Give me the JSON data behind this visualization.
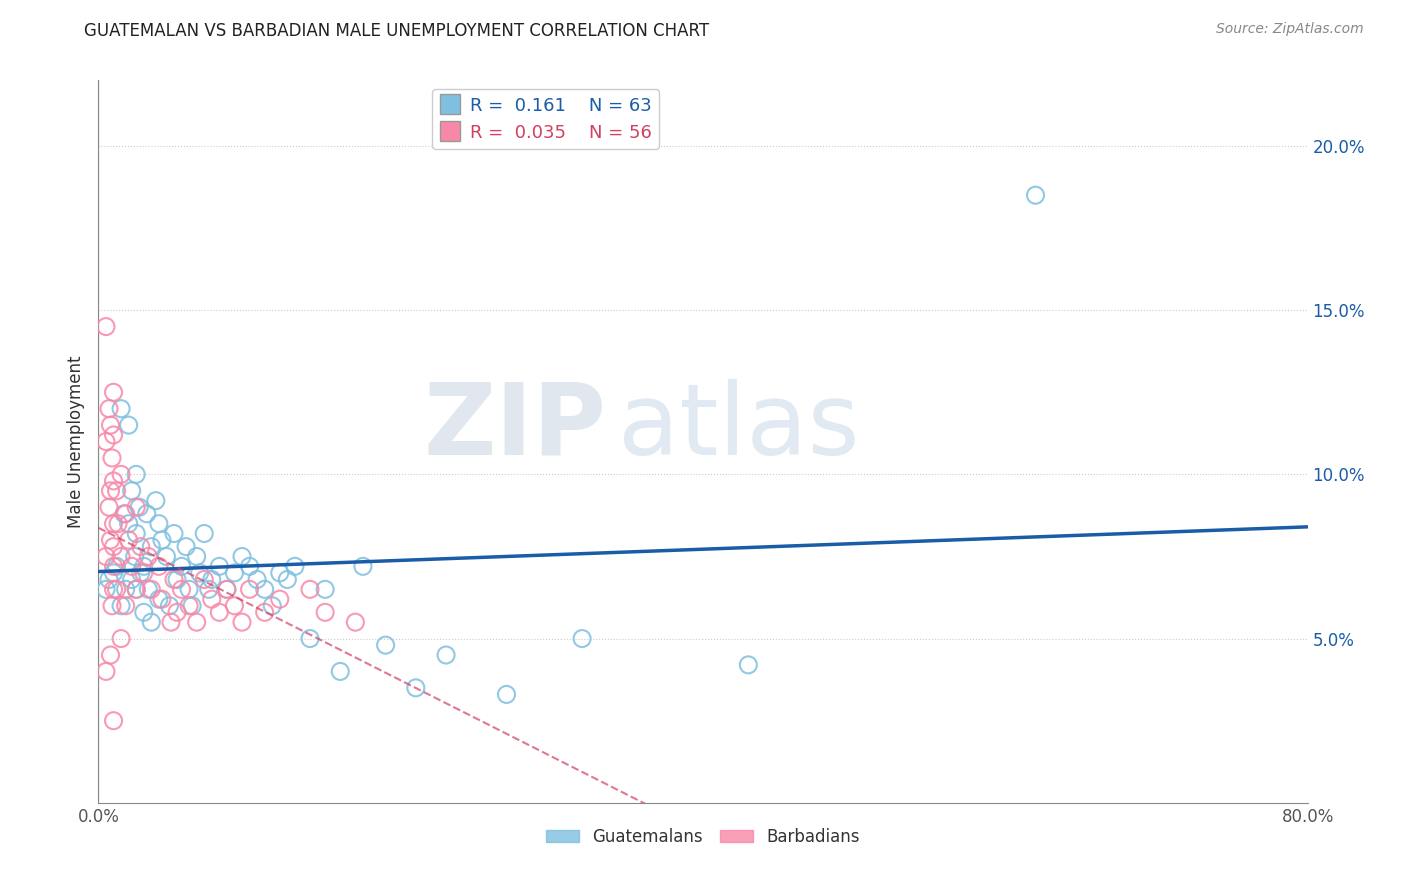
{
  "title": "GUATEMALAN VS BARBADIAN MALE UNEMPLOYMENT CORRELATION CHART",
  "source": "Source: ZipAtlas.com",
  "ylabel": "Male Unemployment",
  "xlim": [
    0.0,
    0.8
  ],
  "ylim": [
    0.0,
    0.22
  ],
  "y_ticks_right": [
    0.05,
    0.1,
    0.15,
    0.2
  ],
  "y_tick_labels_right": [
    "5.0%",
    "10.0%",
    "15.0%",
    "20.0%"
  ],
  "legend_blue_r": "0.161",
  "legend_blue_n": "63",
  "legend_pink_r": "0.035",
  "legend_pink_n": "56",
  "blue_color": "#7fbfdf",
  "pink_color": "#f888a8",
  "blue_line_color": "#1a5ca8",
  "pink_line_color": "#d04060",
  "watermark_zip": "ZIP",
  "watermark_atlas": "atlas",
  "guatemalans_x": [
    0.005,
    0.007,
    0.01,
    0.012,
    0.015,
    0.015,
    0.017,
    0.018,
    0.02,
    0.02,
    0.022,
    0.022,
    0.024,
    0.025,
    0.025,
    0.025,
    0.027,
    0.028,
    0.03,
    0.03,
    0.032,
    0.033,
    0.035,
    0.035,
    0.038,
    0.04,
    0.04,
    0.042,
    0.045,
    0.047,
    0.05,
    0.052,
    0.055,
    0.058,
    0.06,
    0.062,
    0.065,
    0.067,
    0.07,
    0.073,
    0.075,
    0.08,
    0.085,
    0.09,
    0.095,
    0.1,
    0.105,
    0.11,
    0.115,
    0.12,
    0.125,
    0.13,
    0.14,
    0.15,
    0.16,
    0.175,
    0.19,
    0.21,
    0.23,
    0.27,
    0.32,
    0.43,
    0.62
  ],
  "guatemalans_y": [
    0.065,
    0.068,
    0.07,
    0.072,
    0.06,
    0.12,
    0.088,
    0.065,
    0.115,
    0.085,
    0.095,
    0.068,
    0.075,
    0.1,
    0.082,
    0.065,
    0.09,
    0.07,
    0.072,
    0.058,
    0.088,
    0.065,
    0.078,
    0.055,
    0.092,
    0.085,
    0.062,
    0.08,
    0.075,
    0.06,
    0.082,
    0.068,
    0.072,
    0.078,
    0.065,
    0.06,
    0.075,
    0.07,
    0.082,
    0.065,
    0.068,
    0.072,
    0.065,
    0.07,
    0.075,
    0.072,
    0.068,
    0.065,
    0.06,
    0.07,
    0.068,
    0.072,
    0.05,
    0.065,
    0.04,
    0.072,
    0.048,
    0.035,
    0.045,
    0.033,
    0.05,
    0.042,
    0.185
  ],
  "barbadians_x": [
    0.005,
    0.005,
    0.005,
    0.005,
    0.007,
    0.007,
    0.008,
    0.008,
    0.008,
    0.008,
    0.009,
    0.009,
    0.01,
    0.01,
    0.01,
    0.01,
    0.01,
    0.01,
    0.01,
    0.01,
    0.012,
    0.012,
    0.013,
    0.015,
    0.015,
    0.015,
    0.018,
    0.018,
    0.02,
    0.022,
    0.025,
    0.025,
    0.028,
    0.03,
    0.033,
    0.035,
    0.04,
    0.042,
    0.048,
    0.05,
    0.052,
    0.055,
    0.06,
    0.065,
    0.07,
    0.075,
    0.08,
    0.085,
    0.09,
    0.095,
    0.1,
    0.11,
    0.12,
    0.14,
    0.15,
    0.17
  ],
  "barbadians_y": [
    0.145,
    0.11,
    0.075,
    0.04,
    0.12,
    0.09,
    0.115,
    0.095,
    0.08,
    0.045,
    0.105,
    0.06,
    0.125,
    0.112,
    0.098,
    0.085,
    0.078,
    0.072,
    0.065,
    0.025,
    0.095,
    0.065,
    0.085,
    0.1,
    0.075,
    0.05,
    0.088,
    0.06,
    0.08,
    0.072,
    0.09,
    0.065,
    0.078,
    0.07,
    0.075,
    0.065,
    0.072,
    0.062,
    0.055,
    0.068,
    0.058,
    0.065,
    0.06,
    0.055,
    0.068,
    0.062,
    0.058,
    0.065,
    0.06,
    0.055,
    0.065,
    0.058,
    0.062,
    0.065,
    0.058,
    0.055
  ]
}
